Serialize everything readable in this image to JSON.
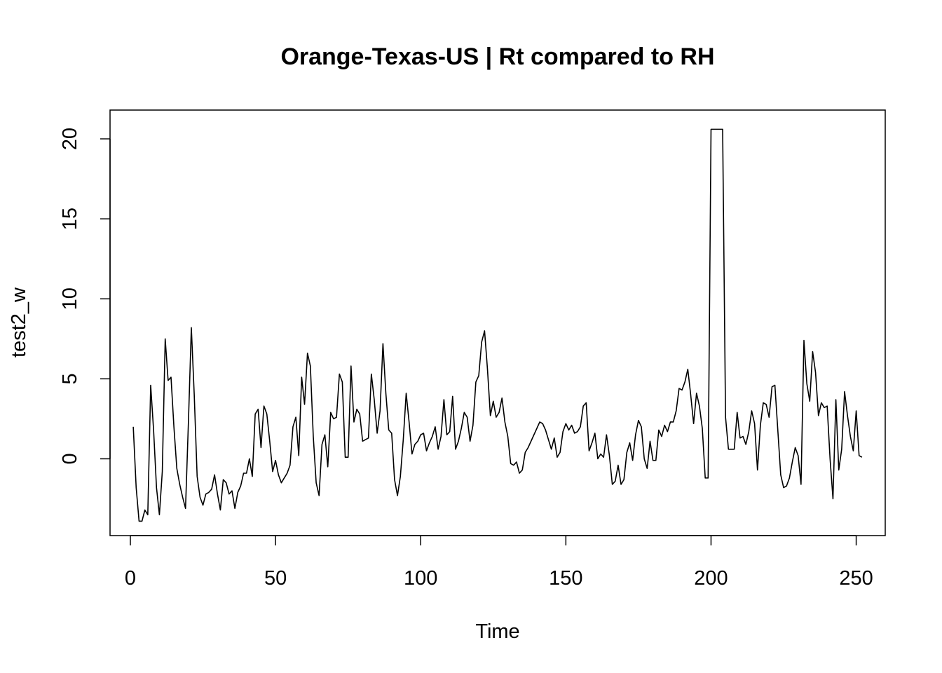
{
  "chart_data": {
    "type": "line",
    "title": "Orange-Texas-US | Rt compared to RH",
    "xlabel": "Time",
    "ylabel": "test2_w",
    "xlim": [
      -7,
      260
    ],
    "ylim": [
      -4.8,
      21.8
    ],
    "xticks": [
      0,
      50,
      100,
      150,
      200,
      250
    ],
    "yticks": [
      0,
      5,
      10,
      15,
      20
    ],
    "grid": false,
    "series": [
      {
        "values": [
          2.0,
          -1.8,
          -3.9,
          -3.9,
          -3.2,
          -3.5,
          4.6,
          1.8,
          -1.8,
          -3.5,
          -0.8,
          7.5,
          4.9,
          5.1,
          2.0,
          -0.6,
          -1.6,
          -2.4,
          -3.1,
          2.3,
          8.2,
          4.0,
          -1.1,
          -2.4,
          -2.9,
          -2.2,
          -2.1,
          -1.9,
          -1.0,
          -2.2,
          -3.2,
          -1.3,
          -1.5,
          -2.2,
          -2.0,
          -3.1,
          -2.1,
          -1.7,
          -0.9,
          -0.9,
          0.0,
          -1.1,
          2.8,
          3.1,
          0.7,
          3.3,
          2.8,
          1.1,
          -0.8,
          -0.1,
          -1.0,
          -1.5,
          -1.2,
          -0.9,
          -0.4,
          2.0,
          2.6,
          0.2,
          5.1,
          3.4,
          6.6,
          5.8,
          1.4,
          -1.5,
          -2.3,
          0.9,
          1.5,
          -0.5,
          2.9,
          2.5,
          2.6,
          5.3,
          4.8,
          0.1,
          0.1,
          5.8,
          2.3,
          3.1,
          2.8,
          1.1,
          1.2,
          1.3,
          5.3,
          3.7,
          1.6,
          3.0,
          7.2,
          4.1,
          1.8,
          1.6,
          -1.3,
          -2.3,
          -1.1,
          1.2,
          4.1,
          2.3,
          0.3,
          0.9,
          1.1,
          1.5,
          1.6,
          0.5,
          1.0,
          1.4,
          2.0,
          0.6,
          1.4,
          3.7,
          1.5,
          1.7,
          3.9,
          0.6,
          1.1,
          1.9,
          2.9,
          2.6,
          1.1,
          2.1,
          4.8,
          5.2,
          7.3,
          8.0,
          5.6,
          2.7,
          3.6,
          2.6,
          2.9,
          3.8,
          2.3,
          1.4,
          -0.3,
          -0.4,
          -0.2,
          -0.9,
          -0.7,
          0.4,
          0.7,
          1.1,
          1.5,
          1.9,
          2.3,
          2.2,
          1.8,
          1.2,
          0.6,
          1.3,
          0.1,
          0.4,
          1.7,
          2.2,
          1.8,
          2.1,
          1.6,
          1.7,
          2.0,
          3.3,
          3.5,
          0.5,
          1.0,
          1.6,
          0.0,
          0.3,
          0.1,
          1.5,
          0.2,
          -1.6,
          -1.4,
          -0.4,
          -1.6,
          -1.3,
          0.4,
          1.0,
          -0.1,
          1.5,
          2.4,
          2.0,
          0.0,
          -0.6,
          1.1,
          -0.1,
          -0.1,
          1.8,
          1.4,
          2.1,
          1.7,
          2.3,
          2.3,
          3.0,
          4.4,
          4.3,
          4.8,
          5.6,
          4.0,
          2.2,
          4.1,
          3.3,
          1.9,
          -1.2,
          -1.2,
          20.6,
          20.6,
          20.6,
          20.6,
          20.6,
          2.6,
          0.6,
          0.6,
          0.6,
          2.9,
          1.3,
          1.4,
          0.9,
          1.7,
          3.0,
          2.2,
          -0.7,
          2.1,
          3.5,
          3.4,
          2.6,
          4.5,
          4.6,
          1.8,
          -1.0,
          -1.8,
          -1.7,
          -1.2,
          -0.2,
          0.7,
          0.2,
          -1.6,
          7.4,
          4.7,
          3.6,
          6.7,
          5.4,
          2.7,
          3.5,
          3.2,
          3.3,
          0.0,
          -2.5,
          3.7,
          -0.7,
          0.6,
          4.2,
          2.7,
          1.4,
          0.5,
          3.0,
          0.2,
          0.1
        ]
      }
    ]
  }
}
